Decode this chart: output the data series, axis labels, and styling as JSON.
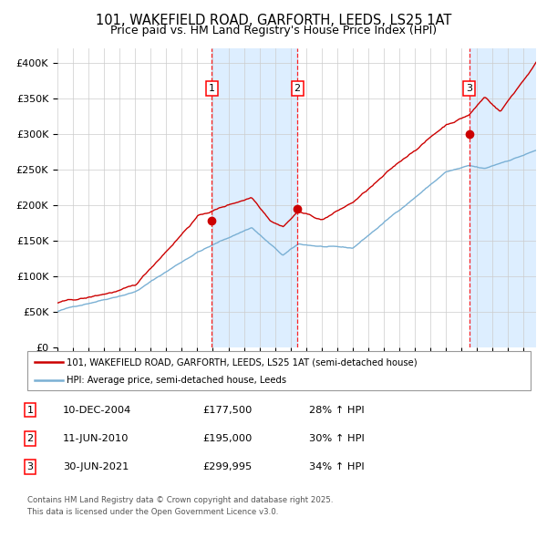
{
  "title1": "101, WAKEFIELD ROAD, GARFORTH, LEEDS, LS25 1AT",
  "title2": "Price paid vs. HM Land Registry's House Price Index (HPI)",
  "ylabel_ticks": [
    "£0",
    "£50K",
    "£100K",
    "£150K",
    "£200K",
    "£250K",
    "£300K",
    "£350K",
    "£400K"
  ],
  "ytick_vals": [
    0,
    50000,
    100000,
    150000,
    200000,
    250000,
    300000,
    350000,
    400000
  ],
  "ylim": [
    0,
    420000
  ],
  "xlim_start": 1995.0,
  "xlim_end": 2025.8,
  "red_line_label": "101, WAKEFIELD ROAD, GARFORTH, LEEDS, LS25 1AT (semi-detached house)",
  "blue_line_label": "HPI: Average price, semi-detached house, Leeds",
  "sale_markers": [
    {
      "num": 1,
      "date": "10-DEC-2004",
      "price": 177500,
      "hpi_pct": "28% ↑ HPI",
      "x_year": 2004.94
    },
    {
      "num": 2,
      "date": "11-JUN-2010",
      "price": 195000,
      "hpi_pct": "30% ↑ HPI",
      "x_year": 2010.44
    },
    {
      "num": 3,
      "date": "30-JUN-2021",
      "price": 299995,
      "hpi_pct": "34% ↑ HPI",
      "x_year": 2021.49
    }
  ],
  "footnote1": "Contains HM Land Registry data © Crown copyright and database right 2025.",
  "footnote2": "This data is licensed under the Open Government Licence v3.0.",
  "bg_color": "#ffffff",
  "shade_color": "#ddeeff",
  "grid_color": "#cccccc",
  "red_color": "#cc0000",
  "blue_color": "#7ab0d4",
  "marker_color": "#cc0000",
  "title1_fontsize": 10.5,
  "title2_fontsize": 9.0
}
